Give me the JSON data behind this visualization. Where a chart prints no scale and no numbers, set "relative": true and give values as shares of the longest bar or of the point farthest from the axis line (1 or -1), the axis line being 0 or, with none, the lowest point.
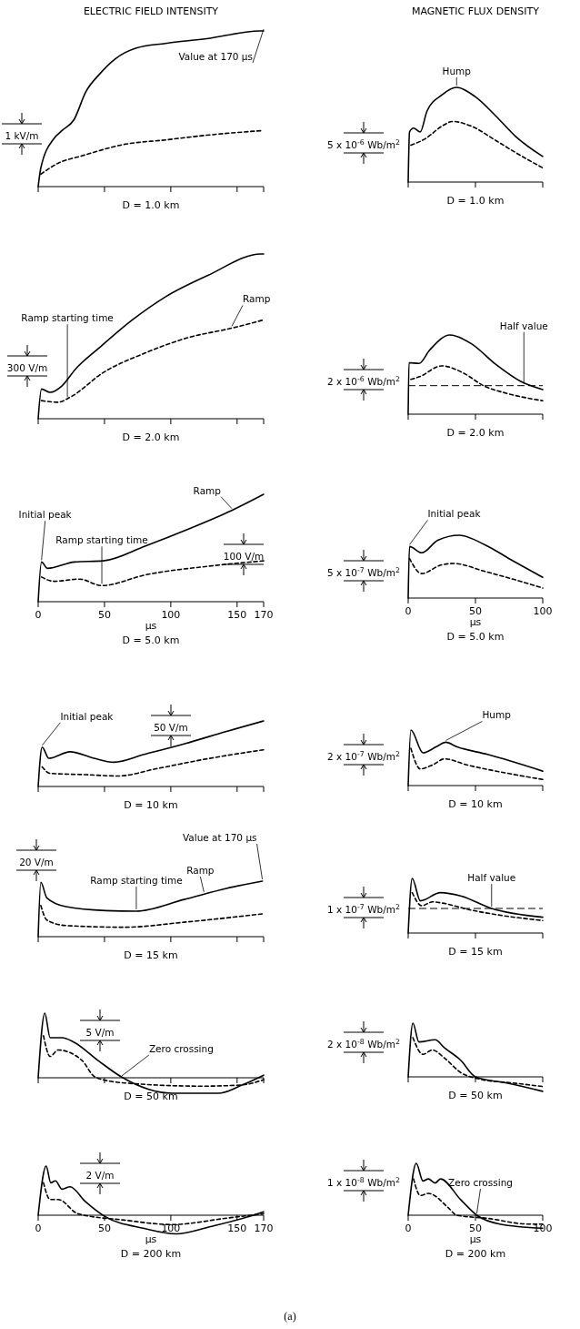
{
  "chart_data": [
    {
      "type": "line",
      "subtitle": "ELECTRIC FIELD INTENSITY",
      "title": "D = 1.0 km",
      "relative": true,
      "xlim": [
        0,
        170
      ],
      "xticks": [
        {
          "value": 0,
          "label": null
        },
        {
          "value": 50,
          "label": null
        },
        {
          "value": 100,
          "label": null
        },
        {
          "value": 150,
          "label": null
        },
        {
          "value": 170,
          "label": null
        }
      ],
      "tick_labels": false,
      "series": [
        {
          "color": "#000000",
          "line_style": "solid",
          "x": [
            0,
            2,
            12,
            18,
            27,
            36,
            46,
            58,
            74,
            96,
            127,
            167,
            170
          ],
          "values": [
            0,
            0.12,
            0.31,
            0.36,
            0.43,
            0.61,
            0.72,
            0.82,
            0.89,
            0.92,
            0.95,
            1.0,
            1.0
          ]
        },
        {
          "color": "#000000",
          "line_style": "dashed",
          "x": [
            2,
            15,
            34,
            64,
            96,
            127,
            169
          ],
          "values": [
            0.08,
            0.15,
            0.2,
            0.27,
            0.3,
            0.33,
            0.36
          ]
        }
      ],
      "annotations": [
        "1 kV/m",
        {
          "text": "Value at 170 µs",
          "x": 170,
          "y": 1.0
        }
      ]
    },
    {
      "type": "line",
      "subtitle": "MAGNETIC FLUX DENSITY",
      "title": "D = 1.0 km",
      "relative": true,
      "xlim": [
        0,
        100
      ],
      "xticks": [
        {
          "value": 0,
          "label": null
        },
        {
          "value": 50,
          "label": null
        },
        {
          "value": 100,
          "label": null
        }
      ],
      "tick_labels": false,
      "series": [
        {
          "color": "#000000",
          "line_style": "solid",
          "x": [
            0,
            1,
            4,
            9,
            14,
            25,
            36,
            50,
            65,
            80,
            100
          ],
          "values": [
            0,
            0.53,
            0.57,
            0.53,
            0.75,
            0.92,
            1.0,
            0.9,
            0.7,
            0.48,
            0.27
          ]
        },
        {
          "color": "#000000",
          "line_style": "dashed",
          "x": [
            2,
            13,
            25,
            33,
            47,
            65,
            80,
            100
          ],
          "values": [
            0.39,
            0.46,
            0.59,
            0.64,
            0.59,
            0.44,
            0.31,
            0.15
          ]
        }
      ],
      "annotations": [
        "5 x 10$^{-6}$ Wb/m$^{2}$",
        {
          "text": "Hump",
          "x": 36,
          "y": 1.0
        }
      ]
    },
    {
      "type": "line",
      "title": "D = 2.0 km",
      "relative": true,
      "xlim": [
        0,
        170
      ],
      "xticks": [
        {
          "value": 0,
          "label": null
        },
        {
          "value": 50,
          "label": null
        },
        {
          "value": 100,
          "label": null
        },
        {
          "value": 150,
          "label": null
        },
        {
          "value": 170,
          "label": null
        }
      ],
      "tick_labels": false,
      "series": [
        {
          "color": "#000000",
          "line_style": "solid",
          "x": [
            0,
            2.5,
            9,
            18,
            28,
            46,
            71,
            96,
            128,
            168,
            170
          ],
          "values": [
            0,
            0.18,
            0.16,
            0.2,
            0.3,
            0.43,
            0.6,
            0.74,
            0.87,
            1.0,
            1.0
          ]
        },
        {
          "color": "#000000",
          "line_style": "dashed",
          "x": [
            2.5,
            15,
            24,
            49,
            81,
            112,
            146,
            170
          ],
          "values": [
            0.11,
            0.1,
            0.13,
            0.28,
            0.4,
            0.49,
            0.55,
            0.6
          ]
        }
      ],
      "annotations": [
        "300 V/m",
        {
          "text": "Ramp starting time",
          "x": 22,
          "y": 0.12
        },
        {
          "text": "Ramp",
          "x": 146,
          "y": 0.55
        }
      ]
    },
    {
      "type": "line",
      "title": "D = 2.0 km",
      "relative": true,
      "xlim": [
        0,
        100
      ],
      "xticks": [
        {
          "value": 0,
          "label": null
        },
        {
          "value": 50,
          "label": null
        },
        {
          "value": 100,
          "label": null
        }
      ],
      "tick_labels": false,
      "series": [
        {
          "color": "#000000",
          "line_style": "solid",
          "x": [
            0,
            0.6,
            8,
            16,
            31,
            47,
            65,
            84,
            100
          ],
          "values": [
            0,
            0.65,
            0.64,
            0.81,
            1.0,
            0.89,
            0.63,
            0.41,
            0.31
          ]
        },
        {
          "color": "#000000",
          "line_style": "dashed",
          "x": [
            2,
            8,
            25,
            41,
            56,
            74,
            100
          ],
          "values": [
            0.44,
            0.47,
            0.61,
            0.52,
            0.36,
            0.26,
            0.17
          ]
        }
      ],
      "ref_lines": [
        {
          "axis": "y",
          "value": 0.36,
          "line_style": "dashed"
        }
      ],
      "annotations": [
        "2 x 10$^{-6}$ Wb/m$^{2}$",
        {
          "text": "Half value",
          "x": 86,
          "y": 0.36
        }
      ]
    },
    {
      "type": "line",
      "title": "D = 5.0 km",
      "xlabel": "µs",
      "relative": true,
      "xlim": [
        0,
        170
      ],
      "xticks": [
        0,
        50,
        100,
        150,
        170
      ],
      "tick_labels": "x",
      "series": [
        {
          "color": "#000000",
          "line_style": "solid",
          "x": [
            0,
            2.5,
            7,
            27.5,
            49,
            81,
            112,
            146,
            170
          ],
          "values": [
            0,
            0.37,
            0.31,
            0.37,
            0.38,
            0.52,
            0.67,
            0.85,
            1.0
          ]
        },
        {
          "color": "#000000",
          "line_style": "dashed",
          "x": [
            2.5,
            12,
            31,
            48,
            81,
            128,
            170
          ],
          "values": [
            0.23,
            0.19,
            0.21,
            0.15,
            0.25,
            0.33,
            0.38
          ]
        }
      ],
      "annotations": [
        "100 V/m",
        {
          "text": "Initial peak",
          "x": 2.5,
          "y": 0.37
        },
        {
          "text": "Ramp starting time",
          "x": 48,
          "y": 0.15
        },
        {
          "text": "Ramp",
          "x": 146,
          "y": 0.85
        }
      ]
    },
    {
      "type": "line",
      "title": "D = 5.0 km",
      "xlabel": "µs",
      "relative": true,
      "xlim": [
        0,
        100
      ],
      "xticks": [
        0,
        50,
        100
      ],
      "tick_labels": "x",
      "series": [
        {
          "color": "#000000",
          "line_style": "solid",
          "x": [
            0,
            1,
            10,
            22,
            38,
            56,
            78,
            100
          ],
          "values": [
            0,
            0.82,
            0.72,
            0.92,
            1.0,
            0.86,
            0.59,
            0.33
          ]
        },
        {
          "color": "#000000",
          "line_style": "dashed",
          "x": [
            1,
            10,
            25,
            34,
            56,
            78,
            100
          ],
          "values": [
            0.63,
            0.39,
            0.53,
            0.55,
            0.43,
            0.3,
            0.16
          ]
        }
      ],
      "annotations": [
        "5 x 10$^{-7}$ Wb/m$^{2}$",
        {
          "text": "Initial peak",
          "x": 1,
          "y": 0.82
        }
      ]
    },
    {
      "type": "line",
      "title": "D = 10 km",
      "relative": true,
      "xlim": [
        0,
        170
      ],
      "xticks": [
        {
          "value": 0,
          "label": null
        },
        {
          "value": 50,
          "label": null
        },
        {
          "value": 100,
          "label": null
        },
        {
          "value": 150,
          "label": null
        },
        {
          "value": 170,
          "label": null
        }
      ],
      "tick_labels": false,
      "series": [
        {
          "color": "#000000",
          "line_style": "solid",
          "x": [
            0,
            3,
            8,
            24,
            42,
            57,
            80,
            110,
            142,
            170
          ],
          "values": [
            0,
            0.6,
            0.43,
            0.53,
            0.43,
            0.37,
            0.49,
            0.65,
            0.84,
            1.0
          ]
        },
        {
          "color": "#000000",
          "line_style": "dashed",
          "x": [
            3,
            9,
            36,
            60,
            89,
            124,
            170
          ],
          "values": [
            0.3,
            0.2,
            0.18,
            0.16,
            0.27,
            0.41,
            0.56
          ]
        }
      ],
      "annotations": [
        "50 V/m",
        {
          "text": "Initial peak",
          "x": 3,
          "y": 0.6
        }
      ]
    },
    {
      "type": "line",
      "title": "D = 10 km",
      "relative": true,
      "xlim": [
        0,
        100
      ],
      "xticks": [
        {
          "value": 0,
          "label": null
        },
        {
          "value": 50,
          "label": null
        },
        {
          "value": 100,
          "label": null
        }
      ],
      "tick_labels": false,
      "series": [
        {
          "color": "#000000",
          "line_style": "solid",
          "x": [
            0,
            2,
            11,
            21,
            28,
            36,
            59,
            100
          ],
          "values": [
            0,
            1.0,
            0.59,
            0.7,
            0.78,
            0.7,
            0.56,
            0.26
          ]
        },
        {
          "color": "#000000",
          "line_style": "dashed",
          "x": [
            2,
            9,
            18,
            27,
            44,
            74,
            100
          ],
          "values": [
            0.67,
            0.3,
            0.37,
            0.48,
            0.37,
            0.22,
            0.11
          ]
        }
      ],
      "annotations": [
        "2 x 10$^{-7}$ Wb/m$^{2}$",
        {
          "text": "Hump",
          "x": 28,
          "y": 0.78
        }
      ]
    },
    {
      "type": "line",
      "title": "D = 15 km",
      "relative": true,
      "xlim": [
        0,
        170
      ],
      "xticks": [
        {
          "value": 0,
          "label": null
        },
        {
          "value": 50,
          "label": null
        },
        {
          "value": 100,
          "label": null
        },
        {
          "value": 150,
          "label": null
        },
        {
          "value": 170,
          "label": null
        }
      ],
      "tick_labels": false,
      "series": [
        {
          "color": "#000000",
          "line_style": "solid",
          "x": [
            0,
            2,
            6.5,
            21,
            51,
            74,
            110,
            142,
            169
          ],
          "values": [
            0,
            0.98,
            0.7,
            0.54,
            0.47,
            0.46,
            0.67,
            0.87,
            1.0
          ]
        },
        {
          "color": "#000000",
          "line_style": "dashed",
          "x": [
            2,
            6.5,
            21,
            65,
            110,
            169
          ],
          "values": [
            0.56,
            0.3,
            0.2,
            0.17,
            0.26,
            0.41
          ]
        }
      ],
      "annotations": [
        "20 V/m",
        {
          "text": "Value at 170 µs",
          "x": 169,
          "y": 1.0
        },
        {
          "text": "Ramp starting time",
          "x": 74,
          "y": 0.46
        },
        {
          "text": "Ramp",
          "x": 125,
          "y": 0.77
        }
      ]
    },
    {
      "type": "line",
      "title": "D = 15 km",
      "relative": true,
      "xlim": [
        0,
        100
      ],
      "xticks": [
        {
          "value": 0,
          "label": null
        },
        {
          "value": 50,
          "label": null
        },
        {
          "value": 100,
          "label": null
        }
      ],
      "tick_labels": false,
      "series": [
        {
          "color": "#000000",
          "line_style": "solid",
          "x": [
            0,
            3,
            9,
            24,
            39,
            62,
            100
          ],
          "values": [
            0,
            1.0,
            0.59,
            0.74,
            0.68,
            0.45,
            0.29
          ]
        },
        {
          "color": "#000000",
          "line_style": "dashed",
          "x": [
            3,
            10,
            18,
            25,
            45,
            70,
            100
          ],
          "values": [
            0.74,
            0.5,
            0.57,
            0.55,
            0.43,
            0.32,
            0.23
          ]
        }
      ],
      "ref_lines": [
        {
          "axis": "y",
          "value": 0.45,
          "line_style": "dashed"
        }
      ],
      "annotations": [
        "1 x 10$^{-7}$ Wb/m$^{2}$",
        {
          "text": "Half value",
          "x": 62,
          "y": 0.45
        }
      ]
    },
    {
      "type": "line",
      "title": "D = 50 km",
      "relative": true,
      "xlim": [
        0,
        170
      ],
      "xticks": [
        {
          "value": 0,
          "label": null
        },
        {
          "value": 50,
          "label": null
        },
        {
          "value": 100,
          "label": null
        },
        {
          "value": 150,
          "label": null
        },
        {
          "value": 170,
          "label": null
        }
      ],
      "tick_labels": false,
      "series": [
        {
          "color": "#000000",
          "line_style": "solid",
          "x": [
            0,
            5,
            9,
            18,
            27,
            45,
            63,
            101,
            136,
            154,
            170
          ],
          "values": [
            0,
            1.0,
            0.62,
            0.62,
            0.55,
            0.27,
            0.01,
            -0.24,
            -0.24,
            -0.11,
            0.04
          ]
        },
        {
          "color": "#000000",
          "line_style": "dashed",
          "x": [
            4,
            9,
            15,
            33,
            43,
            65,
            124,
            154,
            170
          ],
          "values": [
            0.65,
            0.33,
            0.43,
            0.27,
            0.01,
            -0.08,
            -0.13,
            -0.11,
            -0.03
          ]
        }
      ],
      "annotations": [
        "5 V/m",
        {
          "text": "Zero crossing",
          "x": 63,
          "y": 0
        }
      ]
    },
    {
      "type": "line",
      "title": "D = 50 km",
      "relative": true,
      "xlim": [
        0,
        100
      ],
      "xticks": [
        {
          "value": 0,
          "label": null
        },
        {
          "value": 50,
          "label": null
        },
        {
          "value": 100,
          "label": null
        }
      ],
      "tick_labels": false,
      "series": [
        {
          "color": "#000000",
          "line_style": "solid",
          "x": [
            0,
            3.5,
            8,
            20,
            27,
            39,
            50,
            74,
            100
          ],
          "values": [
            0,
            1.0,
            0.65,
            0.69,
            0.54,
            0.31,
            0,
            -0.12,
            -0.27
          ]
        },
        {
          "color": "#000000",
          "line_style": "dashed",
          "x": [
            3.5,
            11,
            18,
            27,
            39,
            53,
            80,
            100
          ],
          "values": [
            0.73,
            0.42,
            0.5,
            0.35,
            0.08,
            -0.04,
            -0.12,
            -0.18
          ]
        }
      ],
      "annotations": [
        "2 x 10$^{-8}$ Wb/m$^{2}$"
      ]
    },
    {
      "type": "line",
      "title": "D = 200 km",
      "xlabel": "µs",
      "relative": true,
      "xlim": [
        0,
        170
      ],
      "xticks": [
        0,
        50,
        100,
        150,
        170
      ],
      "tick_labels": "x",
      "series": [
        {
          "color": "#000000",
          "line_style": "solid",
          "x": [
            0,
            6,
            9.5,
            13,
            18,
            24,
            35.5,
            50,
            80,
            104,
            130,
            160,
            170
          ],
          "values": [
            0,
            1.0,
            0.66,
            0.7,
            0.53,
            0.58,
            0.28,
            -0.02,
            -0.27,
            -0.38,
            -0.23,
            -0.02,
            0.07
          ]
        },
        {
          "color": "#000000",
          "line_style": "dashed",
          "x": [
            4,
            9,
            15,
            30,
            65,
            101,
            142,
            170
          ],
          "values": [
            0.66,
            0.32,
            0.32,
            0.03,
            -0.1,
            -0.19,
            -0.06,
            0.03
          ]
        }
      ],
      "annotations": [
        "2 V/m"
      ]
    },
    {
      "type": "line",
      "title": "D = 200 km",
      "xlabel": "µs",
      "relative": true,
      "xlim": [
        0,
        100
      ],
      "xticks": [
        0,
        50,
        100
      ],
      "tick_labels": "x",
      "series": [
        {
          "color": "#000000",
          "line_style": "solid",
          "x": [
            0,
            6,
            11,
            15,
            20,
            24,
            39,
            51,
            68,
            100
          ],
          "values": [
            0,
            1.0,
            0.66,
            0.7,
            0.62,
            0.7,
            0.3,
            0,
            -0.17,
            -0.25
          ]
        },
        {
          "color": "#000000",
          "line_style": "dashed",
          "x": [
            4,
            9,
            15,
            30,
            36,
            59,
            89,
            100
          ],
          "values": [
            0.7,
            0.38,
            0.42,
            0.14,
            0,
            -0.06,
            -0.17,
            -0.17
          ]
        }
      ],
      "annotations": [
        "1 x 10$^{-8}$ Wb/m$^{2}$",
        {
          "text": "Zero crossing",
          "x": 51,
          "y": 0
        },
        "(a)"
      ]
    }
  ]
}
